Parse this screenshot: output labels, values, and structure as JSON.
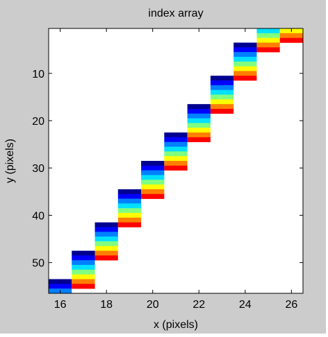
{
  "chart_data": {
    "type": "heatmap",
    "title": "index array",
    "xlabel": "x (pixels)",
    "ylabel": "y (pixels)",
    "xlim": [
      15.5,
      26.5
    ],
    "ylim": [
      56.5,
      0.5
    ],
    "y_reversed": true,
    "grid": false,
    "colormap": "jet",
    "colormap_colors": [
      "#000090",
      "#0000ff",
      "#0080ff",
      "#00e0ff",
      "#80ff80",
      "#ffff00",
      "#ff8000",
      "#ff0000"
    ],
    "xticks": [
      16,
      18,
      20,
      22,
      24,
      26
    ],
    "yticks": [
      10,
      20,
      30,
      40,
      50
    ],
    "xtick_labels": [
      "16",
      "18",
      "20",
      "22",
      "24",
      "26"
    ],
    "ytick_labels": [
      "10",
      "20",
      "30",
      "40",
      "50"
    ],
    "columns": [
      {
        "x": 16,
        "y_start": 54,
        "colors": [
          "#000090",
          "#0000ff",
          "#0080ff",
          "#00e0ff",
          "#80ff80",
          "#ffff00",
          "#ff8000",
          "#ff0000"
        ]
      },
      {
        "x": 17,
        "y_start": 48,
        "colors": [
          "#000090",
          "#0000ff",
          "#0080ff",
          "#00e0ff",
          "#80ff80",
          "#ffff00",
          "#ff8000",
          "#ff0000"
        ]
      },
      {
        "x": 18,
        "y_start": 42,
        "colors": [
          "#000090",
          "#0000ff",
          "#0080ff",
          "#00e0ff",
          "#80ff80",
          "#ffff00",
          "#ff8000",
          "#ff0000"
        ]
      },
      {
        "x": 19,
        "y_start": 35,
        "colors": [
          "#000090",
          "#0000ff",
          "#0080ff",
          "#00e0ff",
          "#80ff80",
          "#ffff00",
          "#ff8000",
          "#ff0000"
        ]
      },
      {
        "x": 20,
        "y_start": 29,
        "colors": [
          "#000090",
          "#0000ff",
          "#0080ff",
          "#00e0ff",
          "#80ff80",
          "#ffff00",
          "#ff8000",
          "#ff0000"
        ]
      },
      {
        "x": 21,
        "y_start": 23,
        "colors": [
          "#000090",
          "#0000ff",
          "#0080ff",
          "#00e0ff",
          "#80ff80",
          "#ffff00",
          "#ff8000",
          "#ff0000"
        ]
      },
      {
        "x": 22,
        "y_start": 17,
        "colors": [
          "#000090",
          "#0000ff",
          "#0080ff",
          "#00e0ff",
          "#80ff80",
          "#ffff00",
          "#ff8000",
          "#ff0000"
        ]
      },
      {
        "x": 23,
        "y_start": 11,
        "colors": [
          "#000090",
          "#0000ff",
          "#0080ff",
          "#00e0ff",
          "#80ff80",
          "#ffff00",
          "#ff8000",
          "#ff0000"
        ]
      },
      {
        "x": 24,
        "y_start": 4,
        "colors": [
          "#000090",
          "#0000ff",
          "#0080ff",
          "#00e0ff",
          "#80ff80",
          "#ffff00",
          "#ff8000",
          "#ff0000"
        ]
      },
      {
        "x": 25,
        "y_start": -2,
        "colors": [
          "#000090",
          "#0000ff",
          "#0080ff",
          "#00e0ff",
          "#80ff80",
          "#ffff00",
          "#ff8000",
          "#ff0000"
        ]
      },
      {
        "x": 26,
        "y_start": -4,
        "colors": [
          "#000090",
          "#0000ff",
          "#0080ff",
          "#00e0ff",
          "#80ff80",
          "#ffff00",
          "#ff8000",
          "#ff0000"
        ]
      }
    ]
  }
}
